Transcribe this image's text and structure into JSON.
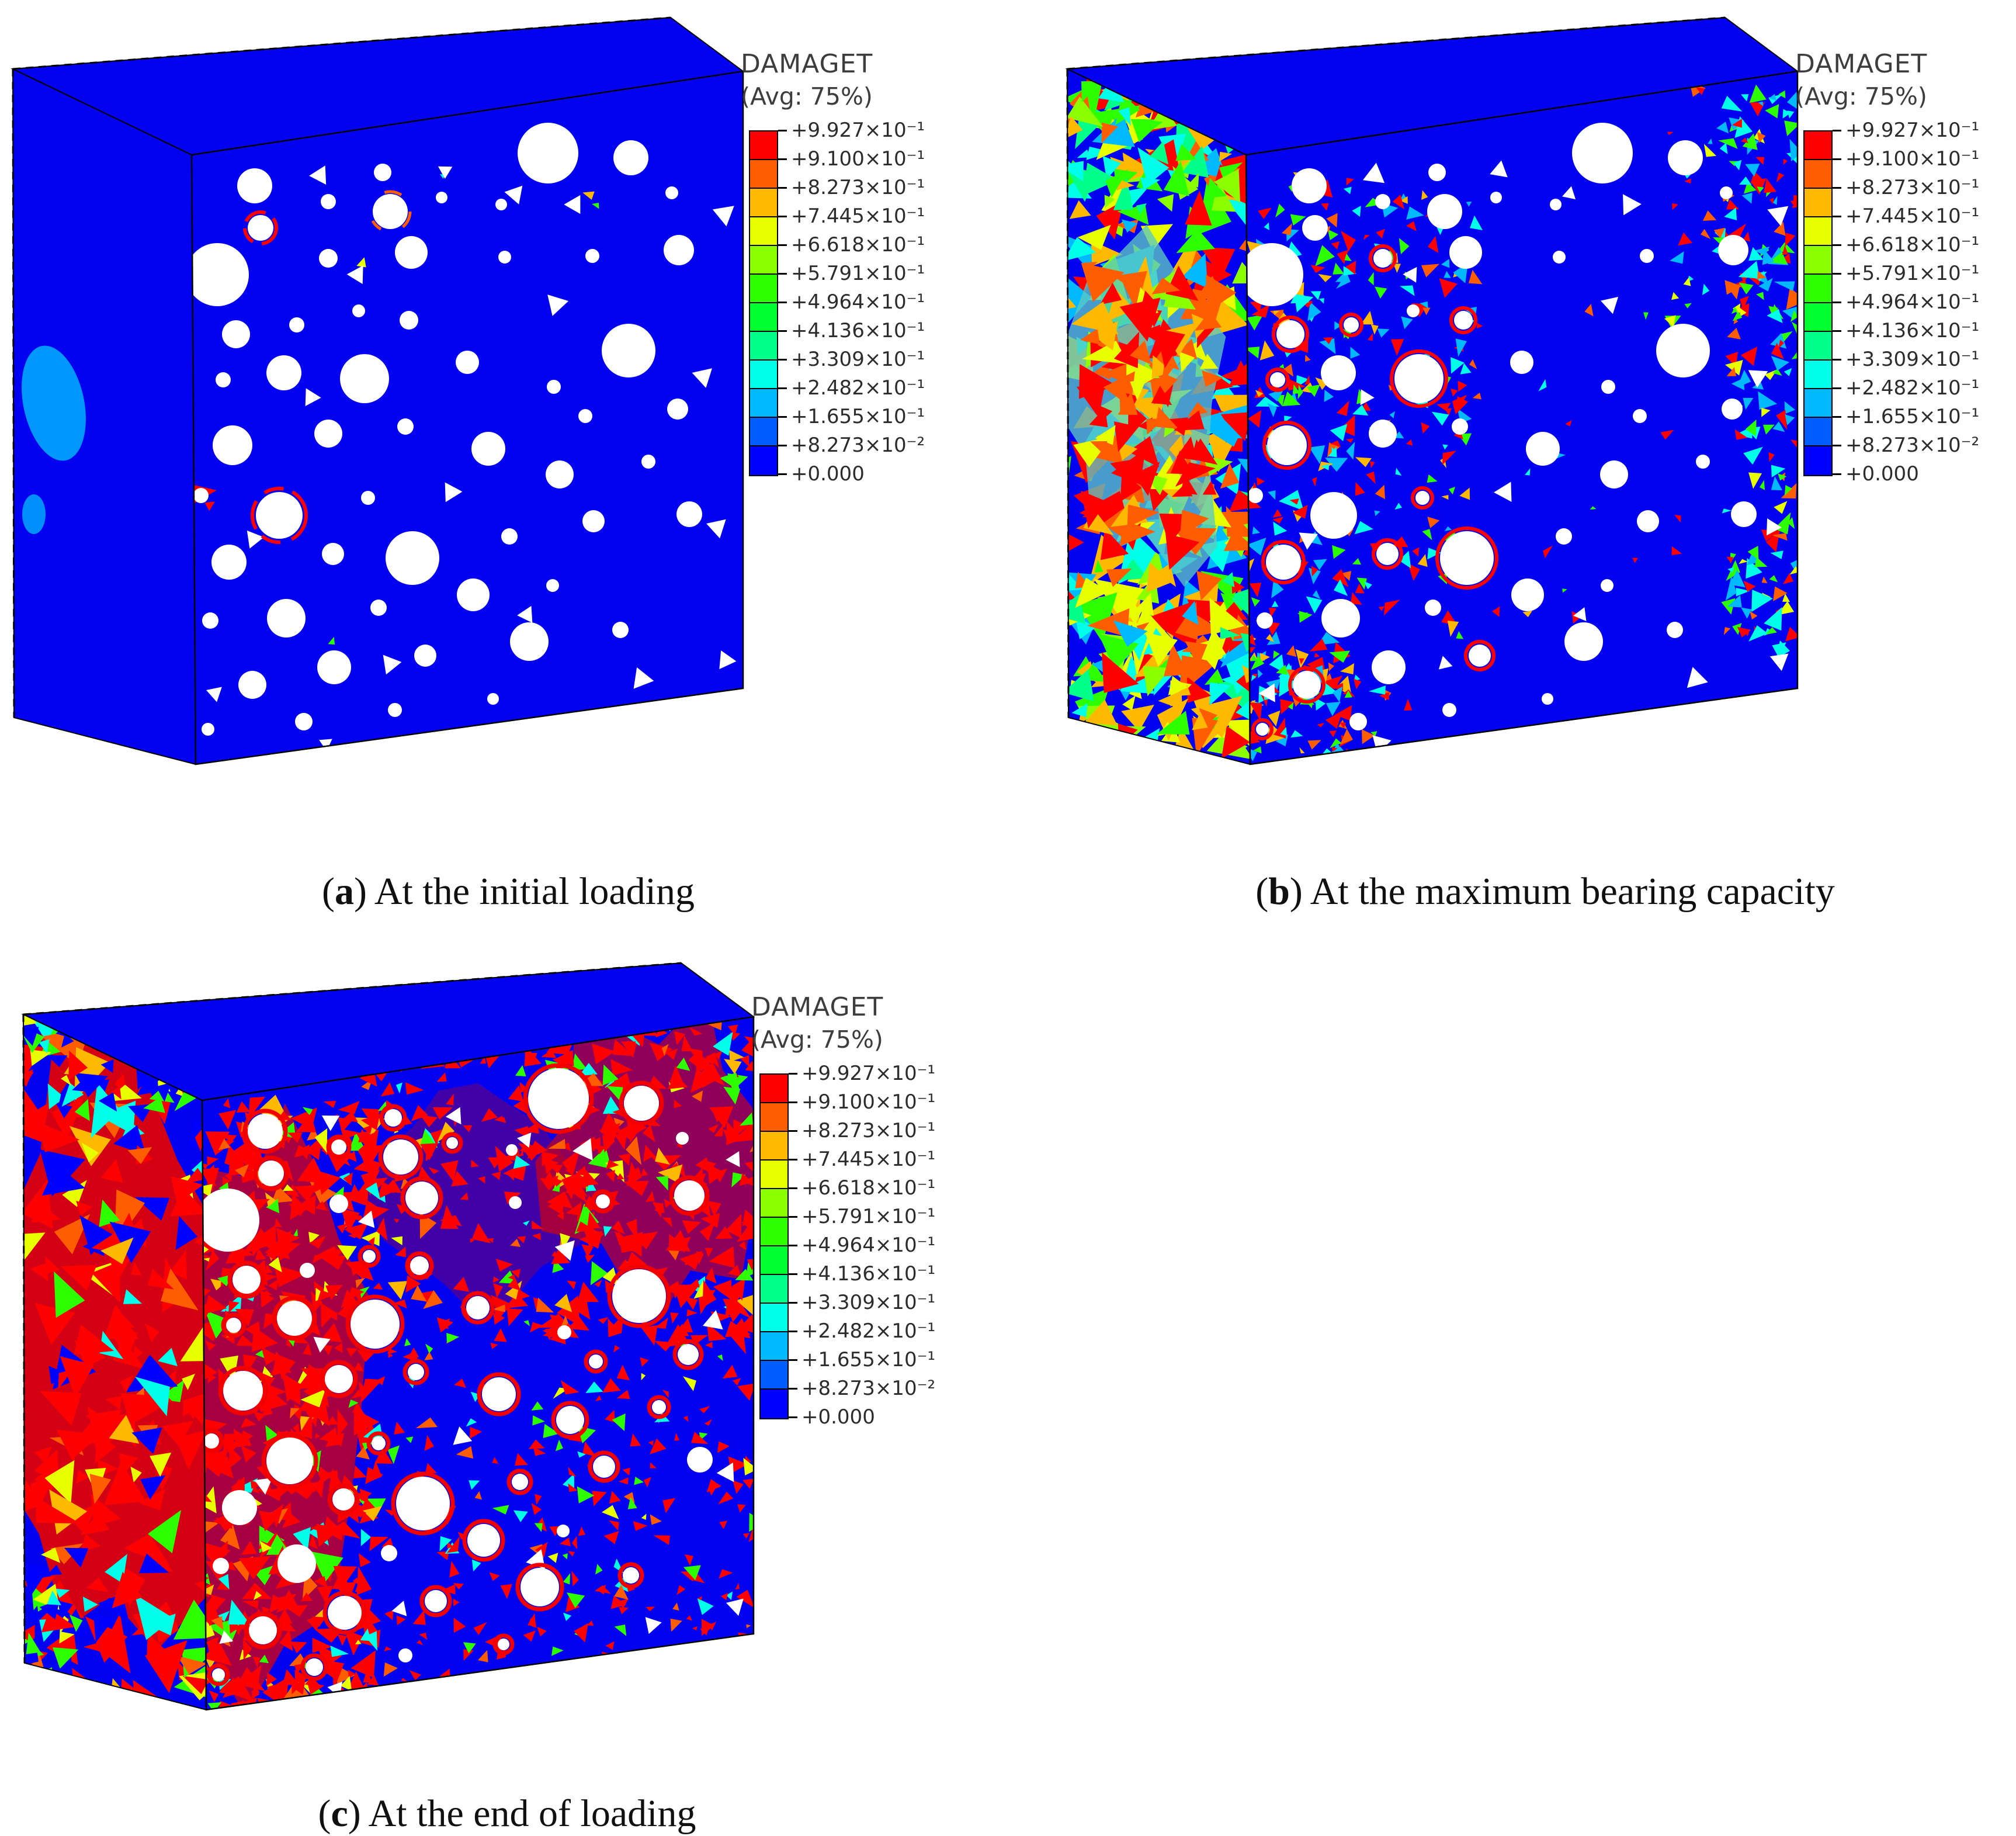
{
  "legend": {
    "title": "DAMAGET",
    "subtitle": "(Avg: 75%)",
    "tick_labels": [
      "+9.927×10⁻¹",
      "+9.100×10⁻¹",
      "+8.273×10⁻¹",
      "+7.445×10⁻¹",
      "+6.618×10⁻¹",
      "+5.791×10⁻¹",
      "+4.964×10⁻¹",
      "+4.136×10⁻¹",
      "+3.309×10⁻¹",
      "+2.482×10⁻¹",
      "+1.655×10⁻¹",
      "+8.273×10⁻²",
      "+0.000"
    ],
    "band_colors": [
      "#ff0000",
      "#ff5d00",
      "#ffb900",
      "#e8ff00",
      "#8bff00",
      "#2eff00",
      "#00ff2e",
      "#00ff8b",
      "#00ffe8",
      "#00b9ff",
      "#005dff",
      "#0000ff"
    ]
  },
  "panels": [
    {
      "id": "a",
      "label": "a",
      "caption": "At the initial loading"
    },
    {
      "id": "b",
      "label": "b",
      "caption": "At the maximum bearing capacity"
    },
    {
      "id": "c",
      "label": "c",
      "caption": "At the end of loading"
    }
  ],
  "colors": {
    "block_blue": "#0202f0",
    "damage_red": "#ff0000"
  }
}
